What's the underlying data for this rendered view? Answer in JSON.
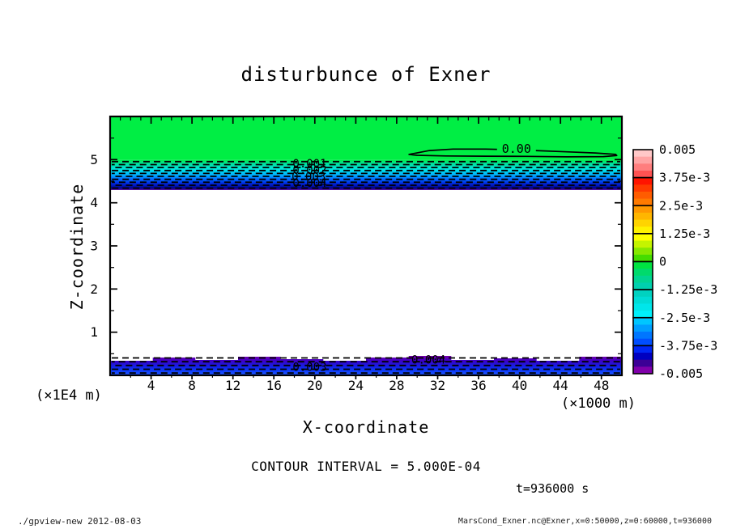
{
  "title": "disturbunce of Exner",
  "axes": {
    "x": {
      "title": "X-coordinate",
      "unit": "(×1000 m)",
      "min": 0,
      "max": 50,
      "major_tick_step": 4,
      "minor_tick_step": 1,
      "tick_labels": [
        "4",
        "8",
        "12",
        "16",
        "20",
        "24",
        "28",
        "32",
        "36",
        "40",
        "44",
        "48"
      ]
    },
    "z": {
      "title": "Z-coordinate",
      "unit": "(×1E4 m)",
      "min": 0,
      "max": 6,
      "major_tick_step": 1,
      "minor_tick_step": 0.5,
      "tick_labels": [
        "1",
        "2",
        "3",
        "4",
        "5"
      ]
    }
  },
  "colorbar": {
    "labels": [
      "0.005",
      "3.75e-3",
      "2.5e-3",
      "1.25e-3",
      "0",
      "-1.25e-3",
      "-2.5e-3",
      "-3.75e-3",
      "-0.005"
    ],
    "cells": [
      [
        "#ffc8c8",
        "#ffa4a4",
        "#ff7e7e",
        "#ff5252"
      ],
      [
        "#ff1400",
        "#ff3a00",
        "#ff5c00",
        "#ff7a00"
      ],
      [
        "#ff9800",
        "#ffb600",
        "#ffd400",
        "#fff200"
      ],
      [
        "#fdff00",
        "#c4f400",
        "#86e800",
        "#44dc00"
      ],
      [
        "#00e341",
        "#00da6c",
        "#00d492",
        "#00d0ae"
      ],
      [
        "#00d2c0",
        "#00dcd6",
        "#00e6ea",
        "#00f0fc"
      ],
      [
        "#00c6ff",
        "#009eff",
        "#0076ff",
        "#004eff"
      ],
      [
        "#0026f4",
        "#0000c0",
        "#3c0096",
        "#8000aa"
      ]
    ]
  },
  "chart_data": {
    "type": "filled-contour",
    "title": "disturbunce of Exner",
    "xlabel": "X-coordinate (×1000 m)",
    "ylabel": "Z-coordinate (×1E4 m)",
    "xlim": [
      0,
      50
    ],
    "zlim": [
      0,
      6
    ],
    "contour_interval": "5.000E-04",
    "colorbar_range": [
      -0.005,
      0.005
    ],
    "time": "t=936000 s",
    "bands": [
      {
        "name": "upper-near-zero-green",
        "z_from": 5.0,
        "z_to": 6.0,
        "fill": "#00ee44"
      },
      {
        "name": "upper-negative-gradient",
        "z_from": 4.295,
        "z_to": 5.0,
        "dashed_rows": 10,
        "stops": [
          [
            0,
            "#00ee44"
          ],
          [
            0.15,
            "#00e0a4"
          ],
          [
            0.33,
            "#00e4e4"
          ],
          [
            0.5,
            "#00b2ff"
          ],
          [
            0.65,
            "#0066ff"
          ],
          [
            0.8,
            "#0022da"
          ],
          [
            0.9,
            "#000a9a"
          ],
          [
            0.94,
            "#000688"
          ],
          [
            1,
            "#5a00a2"
          ]
        ]
      },
      {
        "name": "lower-negative-gradient",
        "z_from": 0,
        "z_to": 0.45,
        "dashed_rows": 5,
        "wavy_top": true,
        "stops": [
          [
            0,
            "#7a00aa"
          ],
          [
            0.25,
            "#3c00c6"
          ],
          [
            0.55,
            "#1420e6"
          ],
          [
            0.8,
            "#1040fa"
          ],
          [
            1,
            "#2258ff"
          ]
        ]
      }
    ],
    "zero_contour": {
      "label": "0.00",
      "label_x": 39.7,
      "label_z": 5.19,
      "ring": [
        [
          29.2,
          5.12
        ],
        [
          31.2,
          5.21
        ],
        [
          33.5,
          5.245
        ],
        [
          36.7,
          5.245
        ],
        [
          39.5,
          5.23
        ],
        [
          41.5,
          5.21
        ],
        [
          44.6,
          5.18
        ],
        [
          47.4,
          5.155
        ],
        [
          49.4,
          5.12
        ],
        [
          49.5,
          5.095
        ],
        [
          48.2,
          5.07
        ],
        [
          44.6,
          5.065
        ],
        [
          40.7,
          5.075
        ],
        [
          36.7,
          5.08
        ],
        [
          32.8,
          5.085
        ],
        [
          30.0,
          5.1
        ]
      ]
    },
    "contour_labels": [
      {
        "text": "0.001",
        "x": 19.5,
        "z": 4.82
      },
      {
        "text": "0.002",
        "x": 19.5,
        "z": 4.67
      },
      {
        "text": "0.003",
        "x": 19.4,
        "z": 4.52
      },
      {
        "text": "0.004",
        "x": 19.5,
        "z": 4.37
      },
      {
        "text": "0.003",
        "x": 19.5,
        "z": 0.1
      },
      {
        "text": "0.004",
        "x": 31.1,
        "z": 0.27
      }
    ]
  },
  "annotations": {
    "contour_interval_text": "CONTOUR INTERVAL = 5.000E-04",
    "time_text": "t=936000 s"
  },
  "footer": {
    "left": "./gpview-new  2012-08-03",
    "right": "MarsCond_Exner.nc@Exner,x=0:50000,z=0:60000,t=936000"
  }
}
